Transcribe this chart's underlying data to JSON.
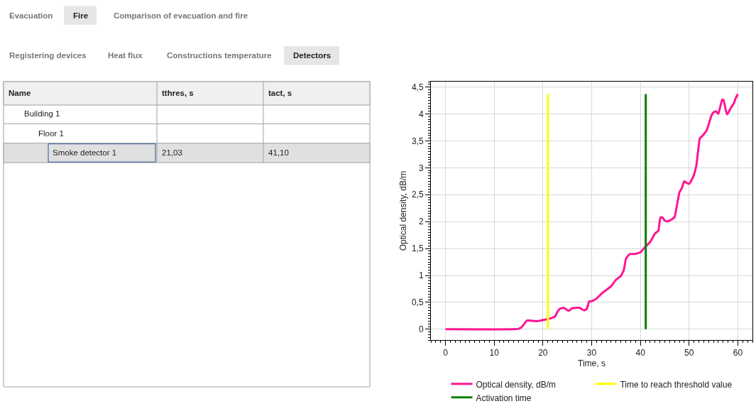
{
  "chart_data": [
    {
      "type": "other",
      "annotations": [
        "Evacuation",
        "Fire",
        "Comparison of evacuation and fire",
        "Registering devices",
        "Heat flux",
        "Constructions temperature",
        "Detectors",
        "Name",
        "tthres, s",
        "tact, s",
        "Building 1",
        "Floor 1",
        "Smoke detector 1",
        "21,03",
        "41,10"
      ]
    },
    {
      "type": "line",
      "xlabel": "Time, s",
      "ylabel": "Optical density, dB/m",
      "xlim": [
        -3,
        63
      ],
      "ylim": [
        -0.2,
        4.6
      ],
      "xticks": [
        0,
        10,
        20,
        30,
        40,
        50,
        60
      ],
      "yticks": [
        {
          "value": 0,
          "label": "0"
        },
        {
          "value": 0.5,
          "label": "0,5"
        },
        {
          "value": 1,
          "label": "1"
        },
        {
          "value": 1.5,
          "label": "1,5"
        },
        {
          "value": 2,
          "label": "2"
        },
        {
          "value": 2.5,
          "label": "2,5"
        },
        {
          "value": 3,
          "label": "3"
        },
        {
          "value": 3.5,
          "label": "3,5"
        },
        {
          "value": 4,
          "label": "4"
        },
        {
          "value": 4.5,
          "label": "4,5"
        }
      ],
      "grid": true,
      "legend": "bottom",
      "marker": "none",
      "line_style": "solid",
      "series": [
        {
          "name": "Optical density, dB/m",
          "color": "#ff1493",
          "x": [
            0,
            14,
            15,
            15.5,
            16,
            16.7,
            17.5,
            18.5,
            19.5,
            20.5,
            21.5,
            22.5,
            23,
            23.5,
            24.2,
            24.8,
            25.3,
            26,
            27,
            27.5,
            28,
            28.5,
            29,
            29.5,
            30,
            31,
            32,
            33,
            34,
            35,
            36,
            36.6,
            37,
            37.5,
            38,
            39,
            40,
            41,
            42,
            42.5,
            43,
            43.7,
            44.1,
            44.5,
            45,
            45.5,
            46,
            47,
            47.5,
            48,
            48.5,
            49,
            49.5,
            50,
            50.5,
            51,
            51.5,
            52.2,
            52.5,
            53,
            53.5,
            54,
            54.5,
            55,
            55.5,
            56,
            56.3,
            56.8,
            57.1,
            57.5,
            57.8,
            58.2,
            58.6,
            59.2,
            59.6,
            60
          ],
          "values": [
            0,
            0,
            0.01,
            0.03,
            0.08,
            0.16,
            0.16,
            0.15,
            0.16,
            0.18,
            0.2,
            0.24,
            0.33,
            0.38,
            0.4,
            0.37,
            0.34,
            0.39,
            0.4,
            0.4,
            0.37,
            0.35,
            0.38,
            0.52,
            0.52,
            0.57,
            0.66,
            0.73,
            0.8,
            0.92,
            0.99,
            1.1,
            1.3,
            1.37,
            1.4,
            1.4,
            1.43,
            1.53,
            1.62,
            1.7,
            1.78,
            1.83,
            2.08,
            2.08,
            2.02,
            2.0,
            2.02,
            2.08,
            2.3,
            2.54,
            2.62,
            2.75,
            2.72,
            2.7,
            2.77,
            2.87,
            3.05,
            3.55,
            3.57,
            3.62,
            3.68,
            3.8,
            3.95,
            4.03,
            4.05,
            4.0,
            4.1,
            4.27,
            4.25,
            4.08,
            3.99,
            4.05,
            4.12,
            4.2,
            4.3,
            4.37
          ]
        },
        {
          "name": "Time to reach threshold value",
          "color": "#ffff00",
          "x": [
            21.03,
            21.03
          ],
          "values": [
            0,
            4.37
          ]
        },
        {
          "name": "Activation time",
          "color": "#008000",
          "x": [
            41.1,
            41.1
          ],
          "values": [
            0,
            4.37
          ]
        }
      ]
    }
  ]
}
